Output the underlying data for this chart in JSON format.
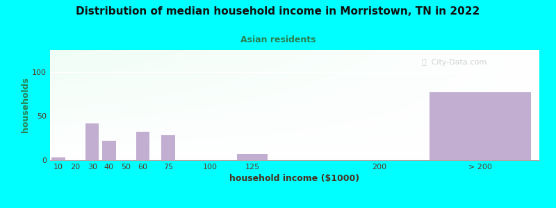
{
  "title": "Distribution of median household income in Morristown, TN in 2022",
  "subtitle": "Asian residents",
  "xlabel": "household income ($1000)",
  "ylabel": "households",
  "background_color": "#00FFFF",
  "bar_color": "#C2AED0",
  "tick_labels": [
    "10",
    "20",
    "30",
    "40",
    "50",
    "60",
    "75",
    "100",
    "125",
    "200",
    "> 200"
  ],
  "tick_positions": [
    10,
    20,
    30,
    40,
    50,
    60,
    75,
    100,
    125,
    200,
    260
  ],
  "bar_centers": [
    10,
    20,
    30,
    40,
    50,
    60,
    75,
    100,
    125,
    200,
    260
  ],
  "bar_widths": [
    8,
    8,
    8,
    8,
    8,
    8,
    8,
    18,
    18,
    8,
    60
  ],
  "values": [
    3,
    0,
    42,
    22,
    0,
    32,
    28,
    0,
    7,
    0,
    77
  ],
  "yticks": [
    0,
    50,
    100
  ],
  "ylim": [
    0,
    125
  ],
  "xlim": [
    5,
    295
  ],
  "watermark": "ⓘ  City-Data.com",
  "title_fontsize": 11,
  "subtitle_fontsize": 9,
  "axis_label_fontsize": 9,
  "tick_fontsize": 8
}
